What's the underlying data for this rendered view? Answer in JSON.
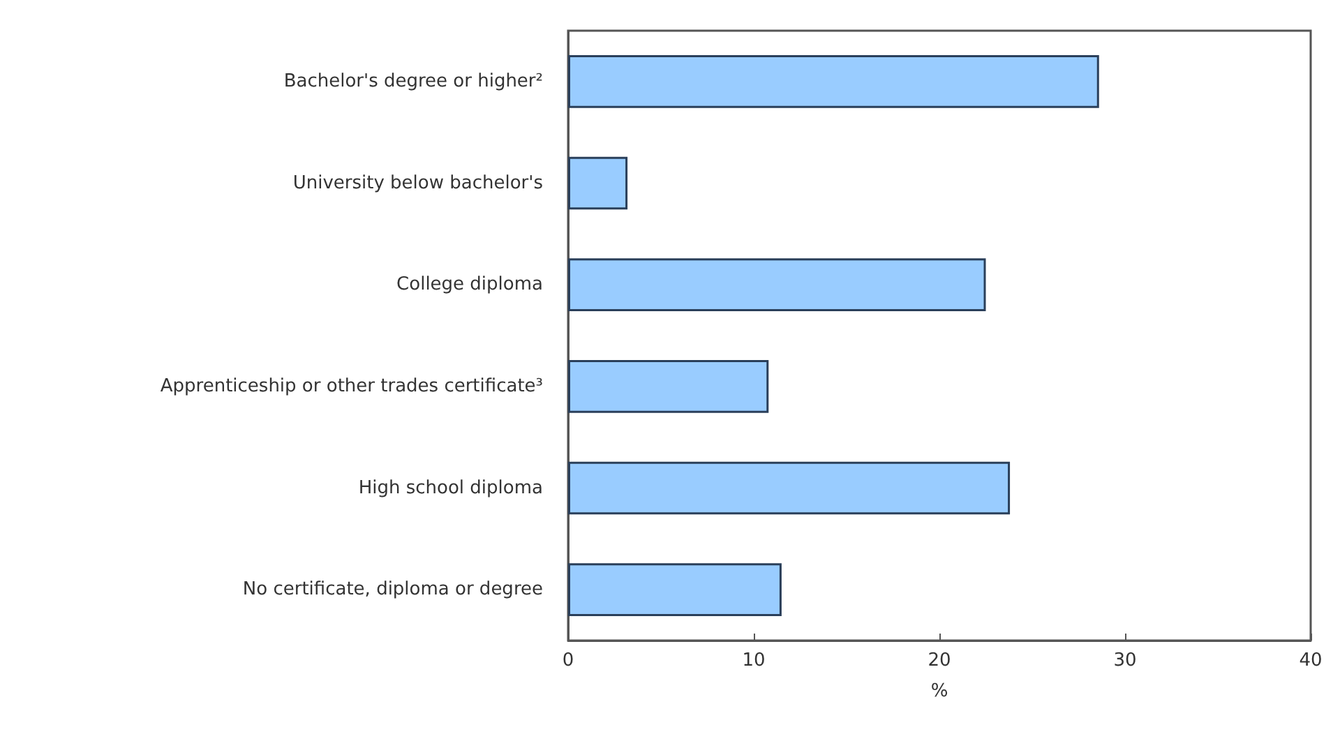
{
  "chart_data": {
    "type": "bar",
    "orientation": "horizontal",
    "xlabel": "%",
    "categories": [
      "Bachelor's degree or higher²",
      "University below bachelor's",
      "College diploma",
      "Apprenticeship or other trades certificate³",
      "High school diploma",
      "No certificate, diploma or degree"
    ],
    "values": [
      28.6,
      3.2,
      22.5,
      10.8,
      23.8,
      11.5
    ],
    "color": "#99ccff",
    "xlim": [
      0,
      40
    ],
    "xticks": [
      0,
      10,
      20,
      30,
      40
    ],
    "grid": false
  }
}
